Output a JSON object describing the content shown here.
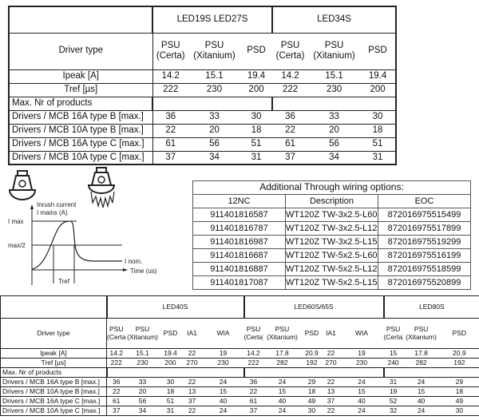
{
  "table_top": {
    "groups": [
      "LED19S   LED27S",
      "LED34S"
    ],
    "driver_type_label": "Driver type",
    "columns": [
      "PSU\n(Certa)",
      "PSU\n(Xitanium)",
      "PSD",
      "PSU\n(Certa)",
      "PSU\n(Xitanium)",
      "PSD"
    ],
    "group_spans": [
      3,
      3
    ],
    "rows": [
      {
        "label": "Ipeak [A]",
        "values": [
          "14.2",
          "15.1",
          "19.4",
          "14.2",
          "15.1",
          "19.4"
        ]
      },
      {
        "label": "Tref [µs]",
        "values": [
          "222",
          "230",
          "200",
          "222",
          "230",
          "200"
        ]
      }
    ],
    "section_label": "Max. Nr of products",
    "max_rows": [
      {
        "label": "Drivers / MCB 16A type B [max.]",
        "values": [
          "36",
          "33",
          "30",
          "36",
          "33",
          "30"
        ]
      },
      {
        "label": "Drivers / MCB 10A type B [max.]",
        "values": [
          "22",
          "20",
          "18",
          "22",
          "20",
          "18"
        ]
      },
      {
        "label": "Drivers / MCB 16A type C [max.]",
        "values": [
          "61",
          "56",
          "51",
          "61",
          "56",
          "51"
        ]
      },
      {
        "label": "Drivers / MCB 10A type C [max.]",
        "values": [
          "37",
          "34",
          "31",
          "37",
          "34",
          "31"
        ]
      }
    ]
  },
  "icons": [
    "luminaire-icon",
    "luminaire-inrush-icon"
  ],
  "inrush_diagram": {
    "y_label_1": "Inrush current",
    "y_label_2": "I mains (A)",
    "imax": "I max",
    "half": "max/2",
    "inom": "I nom.",
    "time": "Time (us)",
    "tref": "Tref"
  },
  "through_wiring": {
    "title": "Additional Through wiring options:",
    "headers": [
      "12NC",
      "Description",
      "EOC"
    ],
    "rows": [
      [
        "911401816587",
        "WT120Z TW-3x2.5-L600",
        "872016975515499"
      ],
      [
        "911401816787",
        "WT120Z TW-3x2.5-L1200",
        "872016975517899"
      ],
      [
        "911401816987",
        "WT120Z TW-3x2.5-L1500",
        "872016975519299"
      ],
      [
        "911401816687",
        "WT120Z TW-5x2.5-L600",
        "872016975516199"
      ],
      [
        "911401816887",
        "WT120Z TW-5x2.5-L1200",
        "872016975518599"
      ],
      [
        "911401817087",
        "WT120Z TW-5x2.5-L1500",
        "872016975520899"
      ]
    ]
  },
  "table_bottom": {
    "groups": [
      "LED40S",
      "LED60S/65S",
      "LED80S"
    ],
    "group_spans": [
      5,
      5,
      3
    ],
    "driver_type_label": "Driver type",
    "columns": [
      "PSU\n(Certa)",
      "PSU\n(Xitanium)",
      "PSD",
      "IA1",
      "WIA",
      "PSU\n(Certa)",
      "PSU\n(Xitanium)",
      "PSD",
      "IA1",
      "WIA",
      "PSU\n(Certa)",
      "PSU\n(Xitanium)",
      "PSD"
    ],
    "rows": [
      {
        "label": "Ipeak [A]",
        "values": [
          "14.2",
          "15.1",
          "19.4",
          "22",
          "19",
          "14.2",
          "17.8",
          "20.9",
          "22",
          "19",
          "15",
          "17.8",
          "20.9"
        ]
      },
      {
        "label": "Tref [µs]",
        "values": [
          "222",
          "230",
          "200",
          "270",
          "230",
          "222",
          "282",
          "192",
          "270",
          "230",
          "240",
          "282",
          "192"
        ]
      }
    ],
    "section_label": "Max. Nr of products",
    "max_rows": [
      {
        "label": "Drivers / MCB 16A type B [max.]",
        "values": [
          "36",
          "33",
          "30",
          "22",
          "24",
          "36",
          "24",
          "29",
          "22",
          "24",
          "31",
          "24",
          "29"
        ]
      },
      {
        "label": "Drivers / MCB 10A type B [max.]",
        "values": [
          "22",
          "20",
          "18",
          "13",
          "15",
          "22",
          "15",
          "18",
          "13",
          "15",
          "19",
          "15",
          "18"
        ]
      },
      {
        "label": "Drivers / MCB 16A type C [max.]",
        "values": [
          "61",
          "56",
          "51",
          "37",
          "40",
          "61",
          "40",
          "49",
          "37",
          "40",
          "52",
          "40",
          "49"
        ]
      },
      {
        "label": "Drivers / MCB 10A type C [max.]",
        "values": [
          "37",
          "34",
          "31",
          "22",
          "24",
          "37",
          "24",
          "30",
          "22",
          "24",
          "32",
          "24",
          "30"
        ]
      }
    ]
  }
}
